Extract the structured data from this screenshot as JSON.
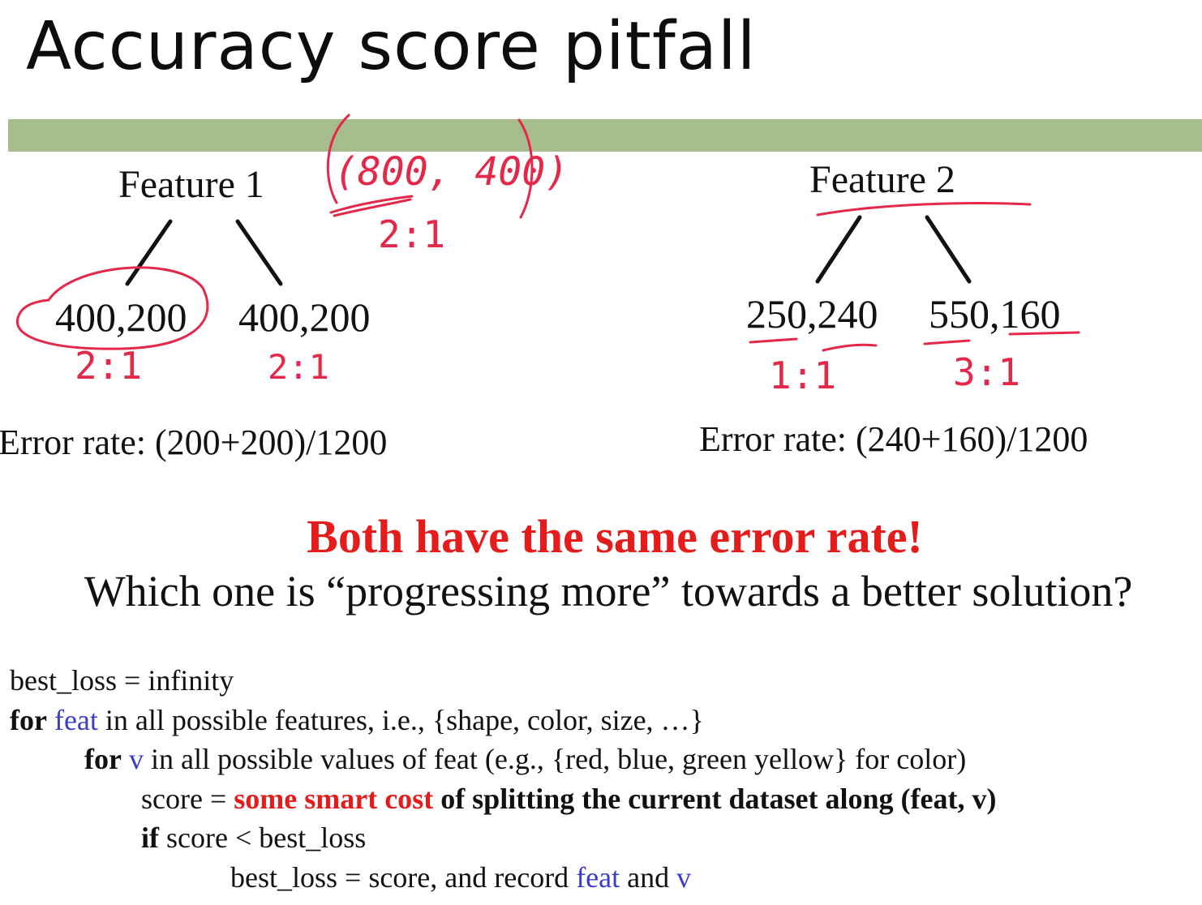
{
  "slide": {
    "title": "Accuracy score pitfall",
    "accent_color": "#a7bd8d",
    "feature1": {
      "label": "Feature 1",
      "left_child": "400,200",
      "right_child": "400,200",
      "error_rate": "Error rate: (200+200)/1200"
    },
    "feature2": {
      "label": "Feature 2",
      "left_child": "250,240",
      "right_child": "550,160",
      "error_rate": "Error rate: (240+160)/1200"
    },
    "headline": "Both have the same error rate!",
    "question": "Which one is “progressing more” towards a better solution?",
    "annotations": {
      "root_counts": "(800, 400)",
      "root_ratio": "2:1",
      "f1_left_ratio": "2:1",
      "f1_right_ratio": "2:1",
      "f2_left_ratio": "1:1",
      "f2_right_ratio": "3:1",
      "ink_color": "#e4284a"
    }
  },
  "pseudocode": {
    "line1": "best_loss = infinity",
    "line2": {
      "kw": "for",
      "var": "feat",
      "rest": "in all possible features, i.e., {shape, color, size, …}"
    },
    "line3": {
      "kw": "for",
      "var": "v",
      "rest": "in all possible values of feat (e.g., {red, blue, green yellow} for color)"
    },
    "line4": {
      "pre": "score =",
      "emph": "some smart cost",
      "bold": "of splitting the current dataset along (feat, v)"
    },
    "line5": {
      "kw": "if",
      "rest": "score < best_loss"
    },
    "line6": {
      "pre": "best_loss = score, and record",
      "var1": "feat",
      "mid": "and",
      "var2": "v"
    }
  }
}
